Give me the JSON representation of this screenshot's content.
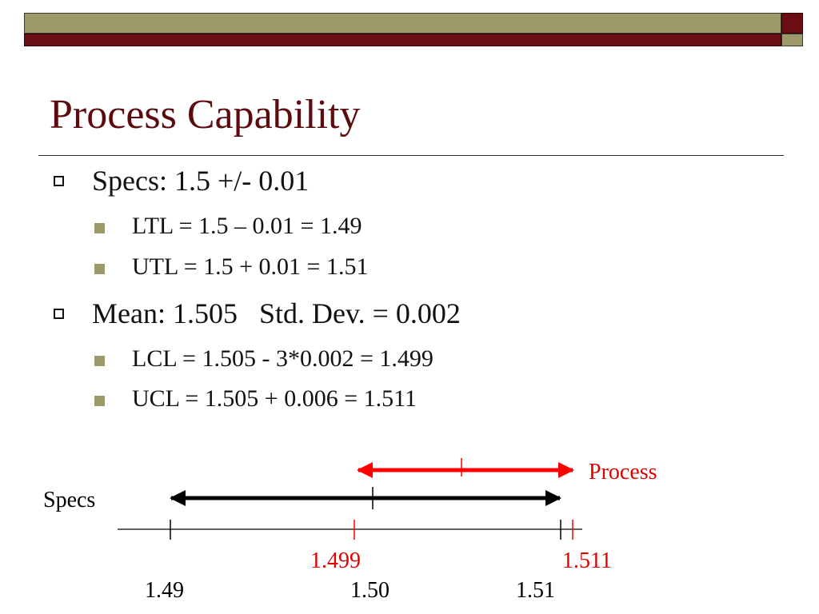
{
  "slide": {
    "title": "Process Capability",
    "bullets": [
      {
        "text": "Specs: 1.5 +/- 0.01",
        "sub": [
          "LTL = 1.5 – 0.01 = 1.49",
          "UTL = 1.5 + 0.01 = 1.51"
        ]
      },
      {
        "text": "Mean: 1.505   Std. Dev. = 0.002",
        "sub": [
          "LCL = 1.505 - 3*0.002 = 1.499",
          "UCL = 1.505 + 0.006 = 1.511"
        ]
      }
    ]
  },
  "diagram": {
    "specs_label": "Specs",
    "process_label": "Process",
    "red_ticks": [
      "1.499",
      "1.511"
    ],
    "black_ticks": [
      "1.49",
      "1.50",
      "1.51"
    ],
    "specs_range": [
      1.49,
      1.51
    ],
    "process_range": [
      1.499,
      1.511
    ],
    "process_mean": 1.505,
    "colors": {
      "specs": "#000000",
      "process": "#ff0000",
      "red_label": "#e00000"
    }
  },
  "theme": {
    "olive": "#9c9a6a",
    "maroon": "#6b0e13",
    "title_color": "#5c0a0e"
  }
}
